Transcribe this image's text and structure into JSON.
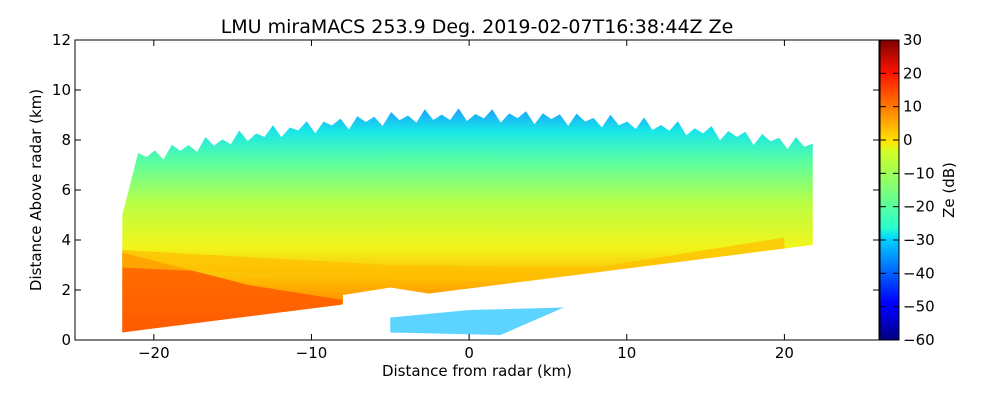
{
  "chart_data": {
    "type": "heatmap",
    "title": "LMU miraMACS 253.9 Deg. 2019-02-07T16:38:44Z  Ze",
    "xlabel": "Distance from radar (km)",
    "ylabel": "Distance Above radar  (km)",
    "xlim": [
      -25,
      26
    ],
    "ylim": [
      0,
      12
    ],
    "xticks": [
      -20,
      -10,
      0,
      10,
      20
    ],
    "xtick_labels": [
      "−20",
      "−10",
      "0",
      "10",
      "20"
    ],
    "yticks": [
      0,
      2,
      4,
      6,
      8,
      10,
      12
    ],
    "ytick_labels": [
      "0",
      "2",
      "4",
      "6",
      "8",
      "10",
      "12"
    ],
    "colorbar": {
      "label": "Ze (dB)",
      "colormap": "jet",
      "range": [
        -60,
        30
      ],
      "ticks": [
        30,
        20,
        10,
        0,
        -10,
        -20,
        -30,
        -40,
        -50,
        -60
      ],
      "tick_labels": [
        "30",
        "20",
        "10",
        "0",
        "−10",
        "−20",
        "−30",
        "−40",
        "−50",
        "−60"
      ]
    },
    "echo_region": {
      "x_extent_km": [
        -22,
        21.8
      ],
      "bottom_left_km": [
        -22,
        0.3
      ],
      "bottom_right_km": [
        21.8,
        3.8
      ],
      "cloud_top_km": [
        -21,
        7.1,
        0,
        8.9,
        21,
        7.7
      ],
      "approx_layers": [
        {
          "height_km": [
            0.3,
            2.5
          ],
          "ze_db": 15,
          "note": "strong echoes near radar left"
        },
        {
          "height_km": [
            2.5,
            4.0
          ],
          "ze_db": 0
        },
        {
          "height_km": [
            4.0,
            6.0
          ],
          "ze_db": -10
        },
        {
          "height_km": [
            6.0,
            7.5
          ],
          "ze_db": -20
        },
        {
          "height_km": [
            7.5,
            8.9
          ],
          "ze_db": -30
        }
      ]
    }
  }
}
